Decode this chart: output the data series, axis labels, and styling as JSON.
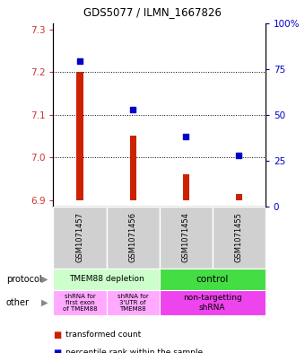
{
  "title": "GDS5077 / ILMN_1667826",
  "samples": [
    "GSM1071457",
    "GSM1071456",
    "GSM1071454",
    "GSM1071455"
  ],
  "bar_values": [
    7.2,
    7.05,
    6.96,
    6.915
  ],
  "bar_base": 6.9,
  "percentile_values": [
    79,
    53,
    38,
    28
  ],
  "ylim_left": [
    6.885,
    7.315
  ],
  "ylim_right": [
    0,
    100
  ],
  "yticks_left": [
    6.9,
    7.0,
    7.1,
    7.2,
    7.3
  ],
  "yticks_right": [
    0,
    25,
    50,
    75,
    100
  ],
  "ytick_labels_right": [
    "0",
    "25",
    "50",
    "75",
    "100%"
  ],
  "bar_color": "#cc2200",
  "scatter_color": "#0000cc",
  "bar_width": 0.12,
  "protocol_label_1": "TMEM88 depletion",
  "protocol_label_2": "control",
  "other_label_1": "shRNA for\nfirst exon\nof TMEM88",
  "other_label_2": "shRNA for\n3'UTR of\nTMEM88",
  "other_label_3": "non-targetting\nshRNA",
  "protocol_color_1": "#ccffcc",
  "protocol_color_2": "#44dd44",
  "other_color_1": "#ffaaff",
  "other_color_2": "#ffaaff",
  "other_color_3": "#ee44ee",
  "sample_box_color": "#d0d0d0",
  "left_tick_color": "#cc3333",
  "right_tick_color": "#0000cc",
  "legend_red": "#cc2200",
  "legend_blue": "#0000cc",
  "legend_text_1": "transformed count",
  "legend_text_2": "percentile rank within the sample",
  "arrow_color": "#888888",
  "label_protocol": "protocol",
  "label_other": "other"
}
